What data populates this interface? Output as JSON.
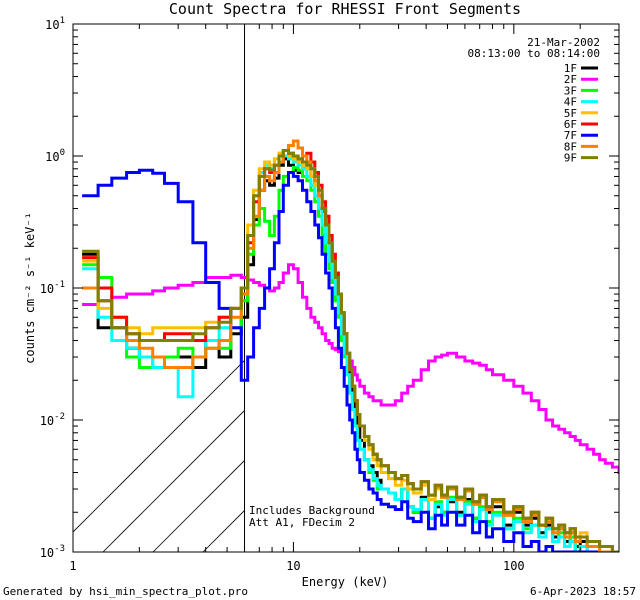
{
  "chart_data": {
    "type": "line",
    "title": "Count Spectra for RHESSI Front Segments",
    "xlabel": "Energy (keV)",
    "ylabel": "counts cm⁻² s⁻¹ keV⁻¹",
    "xscale": "log",
    "yscale": "log",
    "xlim": [
      1,
      300
    ],
    "ylim": [
      0.001,
      10
    ],
    "x_ticks": [
      {
        "value": 1,
        "label": "1"
      },
      {
        "value": 10,
        "label": "10"
      },
      {
        "value": 100,
        "label": "100"
      }
    ],
    "y_ticks": [
      {
        "value": 0.001,
        "base": "10",
        "exp": "-3"
      },
      {
        "value": 0.01,
        "base": "10",
        "exp": "-2"
      },
      {
        "value": 0.1,
        "base": "10",
        "exp": "-1"
      },
      {
        "value": 1,
        "base": "10",
        "exp": "0"
      },
      {
        "value": 10,
        "base": "10",
        "exp": "1"
      }
    ],
    "hatched_region_x": [
      1,
      6
    ],
    "date": "21-Mar-2002",
    "time_range": "08:13:00 to 08:14:00",
    "annotations": [
      "Includes Background",
      "Att A1, FDecim 2"
    ],
    "x": [
      1.1,
      1.3,
      1.5,
      1.75,
      2.0,
      2.3,
      2.6,
      3.0,
      3.5,
      4.0,
      4.6,
      5.2,
      5.8,
      6.2,
      6.6,
      7.0,
      7.4,
      7.8,
      8.2,
      8.6,
      9.0,
      9.5,
      10.0,
      10.5,
      11.0,
      11.5,
      12.0,
      12.5,
      13.0,
      13.5,
      14.0,
      14.5,
      15.0,
      15.5,
      16.0,
      16.5,
      17.0,
      17.5,
      18.0,
      18.5,
      19.0,
      19.5,
      20.0,
      21.0,
      22.0,
      23.0,
      24.0,
      25.0,
      27.0,
      29.0,
      31.0,
      33.0,
      35.0,
      38.0,
      41.0,
      44.0,
      47.0,
      50.0,
      55.0,
      60.0,
      65.0,
      70.0,
      75.0,
      80.0,
      90.0,
      100.0,
      110.0,
      120.0,
      130.0,
      140.0,
      150.0,
      160.0,
      170.0,
      180.0,
      190.0,
      200.0,
      215.0,
      230.0,
      245.0,
      260.0,
      280.0,
      300.0
    ],
    "series": [
      {
        "name": "1F",
        "color": "#000000",
        "values": [
          0.18,
          0.05,
          0.05,
          0.035,
          0.03,
          0.03,
          0.03,
          0.03,
          0.025,
          0.04,
          0.03,
          0.045,
          0.06,
          0.15,
          0.33,
          0.55,
          0.65,
          0.6,
          0.68,
          0.85,
          0.95,
          0.85,
          0.78,
          0.75,
          0.8,
          0.9,
          0.7,
          0.6,
          0.5,
          0.38,
          0.3,
          0.2,
          0.16,
          0.12,
          0.09,
          0.06,
          0.045,
          0.025,
          0.018,
          0.015,
          0.012,
          0.009,
          0.007,
          0.005,
          0.0045,
          0.004,
          0.0035,
          0.003,
          0.0028,
          0.0025,
          0.003,
          0.0022,
          0.002,
          0.0026,
          0.0018,
          0.0022,
          0.002,
          0.0024,
          0.002,
          0.0025,
          0.0018,
          0.0026,
          0.002,
          0.0022,
          0.0016,
          0.002,
          0.0016,
          0.0018,
          0.0014,
          0.0016,
          0.0013,
          0.0015,
          0.0012,
          0.0014,
          0.0011,
          0.0012,
          0.001,
          0.001,
          0.001,
          0.001,
          0.001,
          0.001
        ]
      },
      {
        "name": "2F",
        "color": "#ff00ff",
        "values": [
          0.075,
          0.08,
          0.085,
          0.09,
          0.09,
          0.095,
          0.1,
          0.105,
          0.11,
          0.12,
          0.12,
          0.125,
          0.12,
          0.115,
          0.11,
          0.105,
          0.1,
          0.095,
          0.1,
          0.11,
          0.13,
          0.15,
          0.14,
          0.11,
          0.085,
          0.07,
          0.06,
          0.055,
          0.05,
          0.045,
          0.04,
          0.038,
          0.035,
          0.034,
          0.033,
          0.032,
          0.031,
          0.03,
          0.028,
          0.025,
          0.022,
          0.02,
          0.018,
          0.016,
          0.015,
          0.014,
          0.014,
          0.013,
          0.013,
          0.014,
          0.016,
          0.018,
          0.02,
          0.024,
          0.028,
          0.03,
          0.031,
          0.032,
          0.03,
          0.028,
          0.027,
          0.026,
          0.024,
          0.022,
          0.02,
          0.018,
          0.016,
          0.014,
          0.012,
          0.01,
          0.009,
          0.0085,
          0.008,
          0.0075,
          0.007,
          0.0065,
          0.006,
          0.0055,
          0.005,
          0.0047,
          0.0044,
          0.004
        ]
      },
      {
        "name": "3F",
        "color": "#00ff00",
        "values": [
          0.15,
          0.12,
          0.06,
          0.03,
          0.025,
          0.03,
          0.03,
          0.035,
          0.03,
          0.035,
          0.035,
          0.05,
          0.08,
          0.18,
          0.3,
          0.4,
          0.32,
          0.25,
          0.35,
          0.55,
          0.7,
          0.75,
          0.82,
          0.78,
          0.7,
          0.65,
          0.55,
          0.45,
          0.35,
          0.25,
          0.18,
          0.14,
          0.11,
          0.08,
          0.06,
          0.04,
          0.03,
          0.022,
          0.016,
          0.012,
          0.009,
          0.007,
          0.006,
          0.005,
          0.004,
          0.0035,
          0.003,
          0.003,
          0.0028,
          0.0025,
          0.003,
          0.0022,
          0.002,
          0.0025,
          0.0018,
          0.0024,
          0.002,
          0.0026,
          0.0019,
          0.0024,
          0.0018,
          0.0022,
          0.0017,
          0.002,
          0.0015,
          0.0018,
          0.0015,
          0.0016,
          0.0013,
          0.0015,
          0.0012,
          0.0014,
          0.0011,
          0.0013,
          0.001,
          0.0011,
          0.001,
          0.001,
          0.001,
          0.001,
          0.001,
          0.001
        ]
      },
      {
        "name": "4F",
        "color": "#00ffff",
        "values": [
          0.14,
          0.06,
          0.04,
          0.035,
          0.03,
          0.025,
          0.025,
          0.015,
          0.03,
          0.04,
          0.05,
          0.07,
          0.1,
          0.25,
          0.5,
          0.75,
          0.85,
          0.8,
          0.95,
          1.05,
          1.0,
          0.95,
          0.9,
          0.85,
          0.8,
          0.7,
          0.6,
          0.5,
          0.4,
          0.3,
          0.22,
          0.16,
          0.12,
          0.09,
          0.065,
          0.045,
          0.032,
          0.022,
          0.016,
          0.012,
          0.009,
          0.007,
          0.006,
          0.005,
          0.0042,
          0.0036,
          0.0032,
          0.003,
          0.0028,
          0.0025,
          0.003,
          0.0022,
          0.0021,
          0.0025,
          0.0018,
          0.0023,
          0.0019,
          0.0025,
          0.0019,
          0.0023,
          0.0017,
          0.0021,
          0.0016,
          0.0019,
          0.0015,
          0.0017,
          0.0014,
          0.0016,
          0.0013,
          0.0015,
          0.0012,
          0.0013,
          0.0011,
          0.0012,
          0.001,
          0.0011,
          0.001,
          0.001,
          0.001,
          0.001,
          0.001,
          0.001
        ]
      },
      {
        "name": "5F",
        "color": "#ffbf00",
        "values": [
          0.16,
          0.07,
          0.06,
          0.05,
          0.045,
          0.05,
          0.05,
          0.05,
          0.05,
          0.055,
          0.06,
          0.07,
          0.1,
          0.3,
          0.55,
          0.8,
          0.9,
          0.85,
          0.95,
          1.05,
          1.1,
          1.0,
          0.95,
          0.9,
          0.85,
          0.8,
          0.7,
          0.6,
          0.5,
          0.4,
          0.3,
          0.22,
          0.16,
          0.12,
          0.09,
          0.065,
          0.045,
          0.032,
          0.024,
          0.018,
          0.014,
          0.011,
          0.009,
          0.007,
          0.006,
          0.005,
          0.0045,
          0.004,
          0.0036,
          0.0032,
          0.0035,
          0.003,
          0.0028,
          0.0032,
          0.0025,
          0.003,
          0.0026,
          0.003,
          0.0025,
          0.003,
          0.0023,
          0.0027,
          0.0021,
          0.0025,
          0.0019,
          0.0022,
          0.0018,
          0.002,
          0.0016,
          0.0018,
          0.0015,
          0.0016,
          0.0014,
          0.0015,
          0.0013,
          0.0014,
          0.0012,
          0.0012,
          0.0011,
          0.0011,
          0.001,
          0.001
        ]
      },
      {
        "name": "6F",
        "color": "#ff0000",
        "values": [
          0.17,
          0.1,
          0.06,
          0.045,
          0.04,
          0.04,
          0.045,
          0.045,
          0.04,
          0.05,
          0.06,
          0.07,
          0.1,
          0.22,
          0.45,
          0.7,
          0.8,
          0.75,
          0.85,
          1.0,
          1.1,
          1.05,
          1.0,
          0.95,
          1.0,
          1.05,
          0.9,
          0.75,
          0.6,
          0.45,
          0.35,
          0.25,
          0.18,
          0.13,
          0.09,
          0.065,
          0.045,
          0.032,
          0.024,
          0.018,
          0.014,
          0.011,
          0.009,
          0.0075,
          0.0065,
          0.0055,
          0.005,
          0.0045,
          0.004,
          0.0036,
          0.0038,
          0.0033,
          0.003,
          0.0034,
          0.0027,
          0.0032,
          0.0027,
          0.0031,
          0.0026,
          0.003,
          0.0024,
          0.0027,
          0.0022,
          0.0025,
          0.002,
          0.0022,
          0.0018,
          0.002,
          0.0016,
          0.0018,
          0.0015,
          0.0016,
          0.0014,
          0.0015,
          0.0013,
          0.0013,
          0.0012,
          0.0012,
          0.0011,
          0.0011,
          0.001,
          0.001
        ]
      },
      {
        "name": "7F",
        "color": "#0000ff",
        "values": [
          0.5,
          0.6,
          0.68,
          0.75,
          0.78,
          0.74,
          0.62,
          0.45,
          0.22,
          0.11,
          0.07,
          0.05,
          0.02,
          0.03,
          0.05,
          0.07,
          0.1,
          0.14,
          0.22,
          0.38,
          0.6,
          0.75,
          0.7,
          0.65,
          0.55,
          0.45,
          0.38,
          0.3,
          0.24,
          0.18,
          0.13,
          0.1,
          0.07,
          0.05,
          0.035,
          0.025,
          0.018,
          0.013,
          0.01,
          0.008,
          0.006,
          0.005,
          0.004,
          0.0035,
          0.003,
          0.0028,
          0.0025,
          0.0023,
          0.0022,
          0.0021,
          0.0024,
          0.0018,
          0.0017,
          0.002,
          0.0015,
          0.0019,
          0.0016,
          0.002,
          0.0016,
          0.0019,
          0.0014,
          0.0017,
          0.0013,
          0.0015,
          0.0012,
          0.0014,
          0.0011,
          0.0012,
          0.001,
          0.0011,
          0.001,
          0.001,
          0.001,
          0.001,
          0.001,
          0.001,
          0.001,
          0.001,
          0.001,
          0.001,
          0.001,
          0.001
        ]
      },
      {
        "name": "8F",
        "color": "#ff7f00",
        "values": [
          0.1,
          0.08,
          0.05,
          0.04,
          0.035,
          0.03,
          0.025,
          0.025,
          0.03,
          0.035,
          0.04,
          0.06,
          0.09,
          0.2,
          0.35,
          0.55,
          0.7,
          0.65,
          0.75,
          0.9,
          1.1,
          1.2,
          1.3,
          1.15,
          1.0,
          0.9,
          0.8,
          0.65,
          0.5,
          0.4,
          0.3,
          0.22,
          0.16,
          0.12,
          0.09,
          0.065,
          0.045,
          0.032,
          0.024,
          0.018,
          0.014,
          0.011,
          0.009,
          0.0075,
          0.0065,
          0.0055,
          0.005,
          0.0045,
          0.004,
          0.0036,
          0.0038,
          0.0033,
          0.003,
          0.0034,
          0.0027,
          0.0031,
          0.0026,
          0.003,
          0.0025,
          0.0029,
          0.0023,
          0.0026,
          0.0021,
          0.0024,
          0.0019,
          0.0021,
          0.0017,
          0.0019,
          0.0016,
          0.0017,
          0.0014,
          0.0015,
          0.0013,
          0.0014,
          0.0012,
          0.0013,
          0.0011,
          0.0011,
          0.001,
          0.001,
          0.001,
          0.001
        ]
      },
      {
        "name": "9F",
        "color": "#7f7f00",
        "values": [
          0.19,
          0.08,
          0.05,
          0.045,
          0.04,
          0.04,
          0.04,
          0.04,
          0.045,
          0.05,
          0.055,
          0.07,
          0.1,
          0.25,
          0.5,
          0.7,
          0.8,
          0.78,
          0.85,
          1.0,
          1.1,
          1.05,
          1.0,
          0.95,
          0.9,
          0.85,
          0.8,
          0.7,
          0.55,
          0.4,
          0.3,
          0.22,
          0.16,
          0.12,
          0.09,
          0.065,
          0.045,
          0.032,
          0.024,
          0.018,
          0.014,
          0.011,
          0.009,
          0.0075,
          0.0065,
          0.0055,
          0.005,
          0.0045,
          0.004,
          0.0036,
          0.0038,
          0.0033,
          0.003,
          0.0034,
          0.0027,
          0.0032,
          0.0027,
          0.0031,
          0.0026,
          0.003,
          0.0024,
          0.0027,
          0.0022,
          0.0025,
          0.002,
          0.0022,
          0.0018,
          0.002,
          0.0016,
          0.0018,
          0.0015,
          0.0016,
          0.0014,
          0.0015,
          0.0013,
          0.0013,
          0.0012,
          0.0012,
          0.0011,
          0.0011,
          0.001,
          0.001
        ]
      }
    ]
  },
  "footer": {
    "generator": "Generated by hsi_min_spectra_plot.pro",
    "timestamp": "6-Apr-2023 18:57"
  }
}
